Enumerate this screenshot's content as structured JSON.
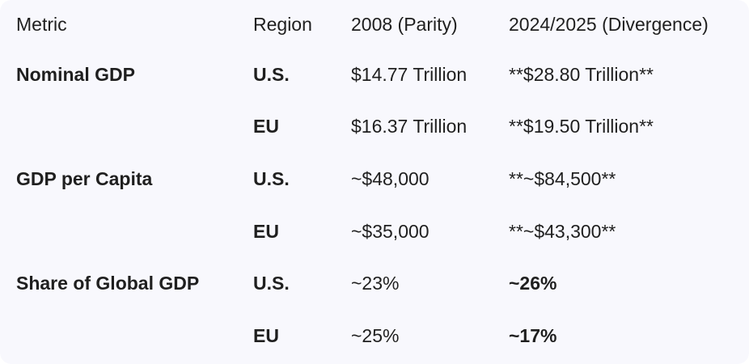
{
  "table": {
    "headers": [
      "Metric",
      "Region",
      "2008 (Parity)",
      "2024/2025 (Divergence)"
    ],
    "rows": [
      {
        "metric": "Nominal GDP",
        "region": "U.S.",
        "y2008": "$14.77 Trillion",
        "y2024": "**$28.80 Trillion**"
      },
      {
        "metric": "",
        "region": "EU",
        "y2008": "$16.37 Trillion",
        "y2024": "**$19.50 Trillion**"
      },
      {
        "metric": "GDP per Capita",
        "region": "U.S.",
        "y2008": "~$48,000",
        "y2024": "**~$84,500**"
      },
      {
        "metric": "",
        "region": "EU",
        "y2008": "~$35,000",
        "y2024": "**~$43,300**"
      },
      {
        "metric": "Share of Global GDP",
        "region": "U.S.",
        "y2008": "~23%",
        "y2024": "~26%"
      },
      {
        "metric": "",
        "region": "EU",
        "y2008": "~25%",
        "y2024": "~17%"
      }
    ]
  }
}
